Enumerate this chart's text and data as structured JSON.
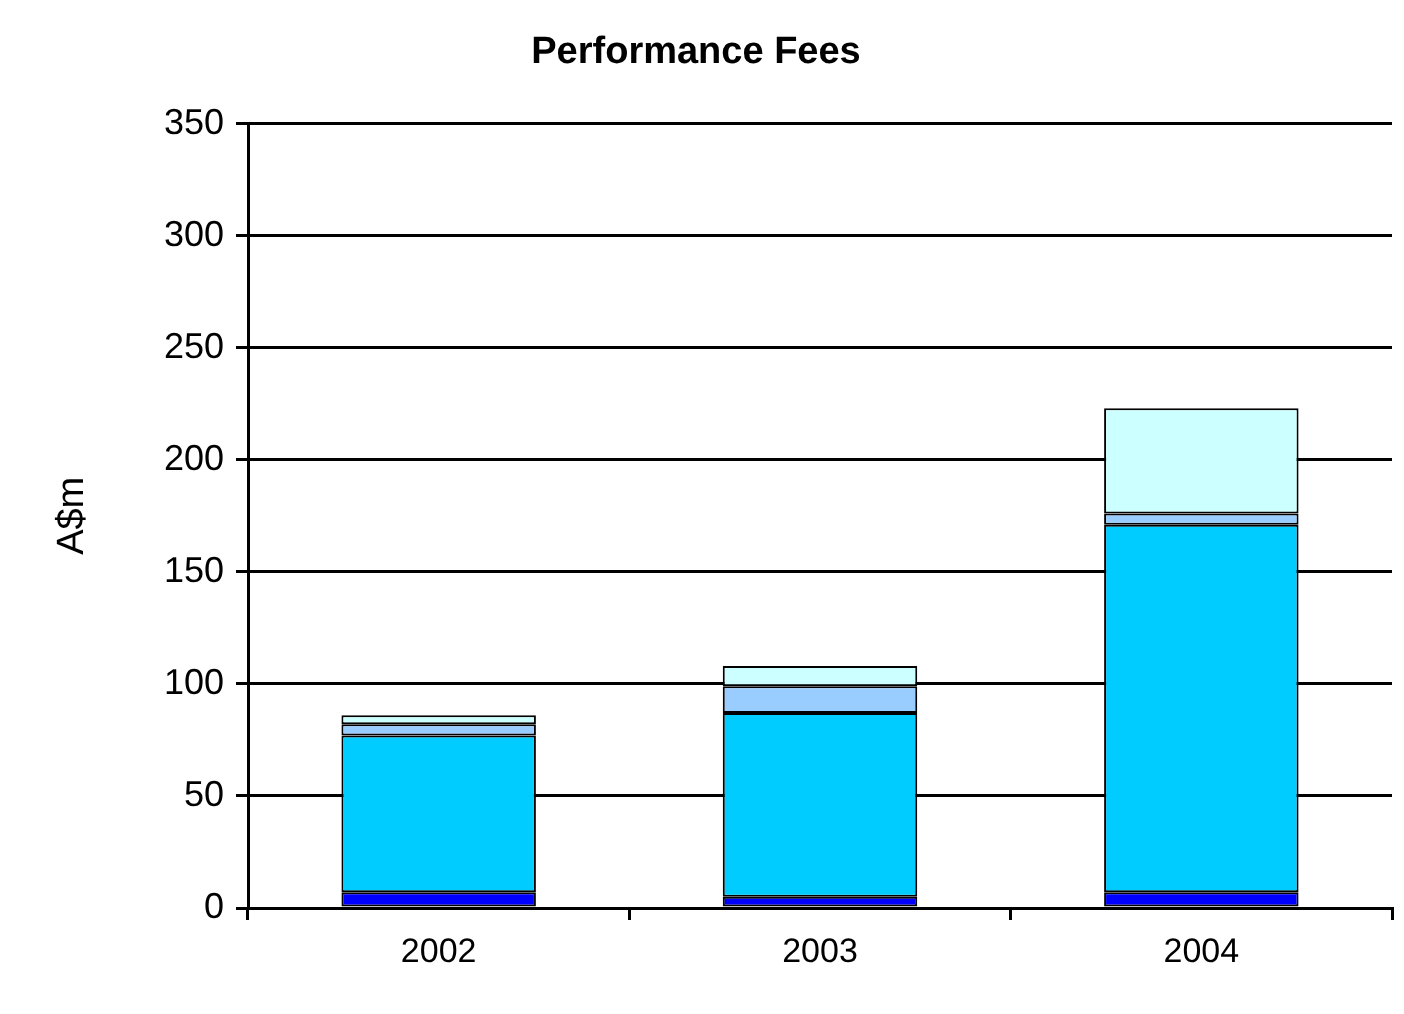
{
  "chart_data": {
    "type": "bar",
    "title": "Performance Fees",
    "ylabel": "A$m",
    "stacked": true,
    "grid": "y",
    "categories": [
      "2002",
      "2003",
      "2004"
    ],
    "series": [
      {
        "color": "#0000ff",
        "values": [
          7,
          5,
          7
        ]
      },
      {
        "color": "#00ccff",
        "values": [
          70,
          82,
          164
        ]
      },
      {
        "color": "#99ccff",
        "values": [
          5,
          12,
          5
        ]
      },
      {
        "color": "#ccffff",
        "values": [
          4,
          9,
          47
        ]
      }
    ],
    "ylim": [
      0,
      350
    ],
    "yticks": [
      0,
      50,
      100,
      150,
      200,
      250,
      300,
      350
    ]
  }
}
